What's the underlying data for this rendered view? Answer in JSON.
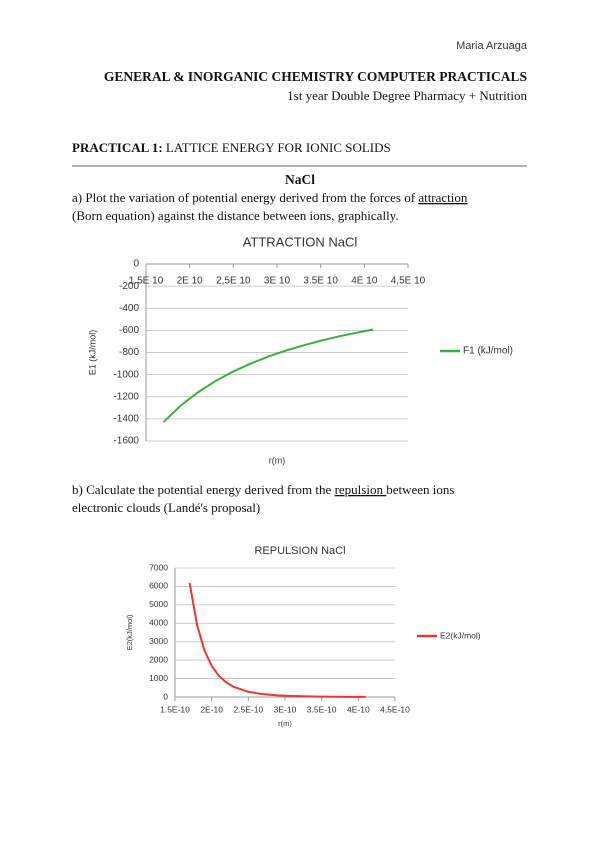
{
  "header": {
    "author": "Maria Arzuaga",
    "title": "GENERAL & INORGANIC CHEMISTRY COMPUTER PRACTICALS",
    "subtitle": "1st year Double Degree Pharmacy + Nutrition"
  },
  "practical": {
    "label": "PRACTICAL 1:",
    "title": " LATTICE ENERGY FOR IONIC SOLIDS"
  },
  "compound": "NaCl",
  "part_a": {
    "before": "a) Plot the variation of potential energy derived from the forces of ",
    "keyword": "attraction",
    "line2": "(Born equation) against the distance between ions, graphically."
  },
  "part_b": {
    "before": "b) Calculate the potential energy derived from the ",
    "keyword": "repulsion ",
    "after": "between ions",
    "line2": "electronic clouds (Landé's proposal)"
  },
  "chart_data": [
    {
      "type": "line",
      "title": "ATTRACTION NaCl",
      "x_label": "r(m)",
      "y_label": "E1 (kJ/mol)",
      "x": [
        1.7e-10,
        1.9e-10,
        2.1e-10,
        2.3e-10,
        2.5e-10,
        2.7e-10,
        2.9e-10,
        3.1e-10,
        3.3e-10,
        3.5e-10,
        3.7e-10,
        3.9e-10,
        4.1e-10
      ],
      "series": [
        {
          "name": "F1 (kJ/mol)",
          "color": "#3fae3f",
          "values": [
            -1429,
            -1278,
            -1157,
            -1056,
            -971,
            -900,
            -837,
            -783,
            -736,
            -694,
            -656,
            -623,
            -592
          ]
        }
      ],
      "xlim": [
        1.5e-10,
        4.5e-10
      ],
      "xticks": [
        {
          "value": 1.5e-10,
          "label": "1.5E 10"
        },
        {
          "value": 2e-10,
          "label": "2E 10"
        },
        {
          "value": 2.5e-10,
          "label": "2,5E 10"
        },
        {
          "value": 3e-10,
          "label": "3E 10"
        },
        {
          "value": 3.5e-10,
          "label": "3.5E 10"
        },
        {
          "value": 4e-10,
          "label": "4E 10"
        },
        {
          "value": 4.5e-10,
          "label": "4,5E 10"
        }
      ],
      "ylim": [
        -1600,
        0
      ],
      "yticks": [
        0,
        -200,
        -400,
        -600,
        -800,
        -1000,
        -1200,
        -1400,
        -1600
      ],
      "grid": true,
      "legend": "right",
      "x_axis_position": "top"
    },
    {
      "type": "line",
      "title": "REPULSION NaCl",
      "x_label": "r(m)",
      "y_label": "E2(kJ/mol)",
      "x": [
        1.7e-10,
        1.8e-10,
        1.9e-10,
        2e-10,
        2.1e-10,
        2.2e-10,
        2.3e-10,
        2.5e-10,
        2.7e-10,
        2.9e-10,
        3.1e-10,
        3.3e-10,
        3.5e-10,
        3.7e-10,
        3.9e-10,
        4.1e-10
      ],
      "series": [
        {
          "name": "E2(kJ/mol)",
          "color": "#ee3333",
          "values": [
            6192,
            3919,
            2544,
            1687,
            1142,
            787,
            552,
            283,
            153,
            86,
            51,
            31,
            19,
            12,
            8,
            5
          ]
        }
      ],
      "xlim": [
        1.5e-10,
        4.5e-10
      ],
      "xticks": [
        {
          "value": 1.5e-10,
          "label": "1.5E-10"
        },
        {
          "value": 2e-10,
          "label": "2E-10"
        },
        {
          "value": 2.5e-10,
          "label": "2.5E-10"
        },
        {
          "value": 3e-10,
          "label": "3E-10"
        },
        {
          "value": 3.5e-10,
          "label": "3.5E-10"
        },
        {
          "value": 4e-10,
          "label": "4E-10"
        },
        {
          "value": 4.5e-10,
          "label": "4,5E-10"
        }
      ],
      "ylim": [
        0,
        7000
      ],
      "yticks": [
        0,
        1000,
        2000,
        3000,
        4000,
        5000,
        6000,
        7000
      ],
      "grid": true,
      "legend": "right",
      "x_axis_position": "bottom"
    }
  ]
}
